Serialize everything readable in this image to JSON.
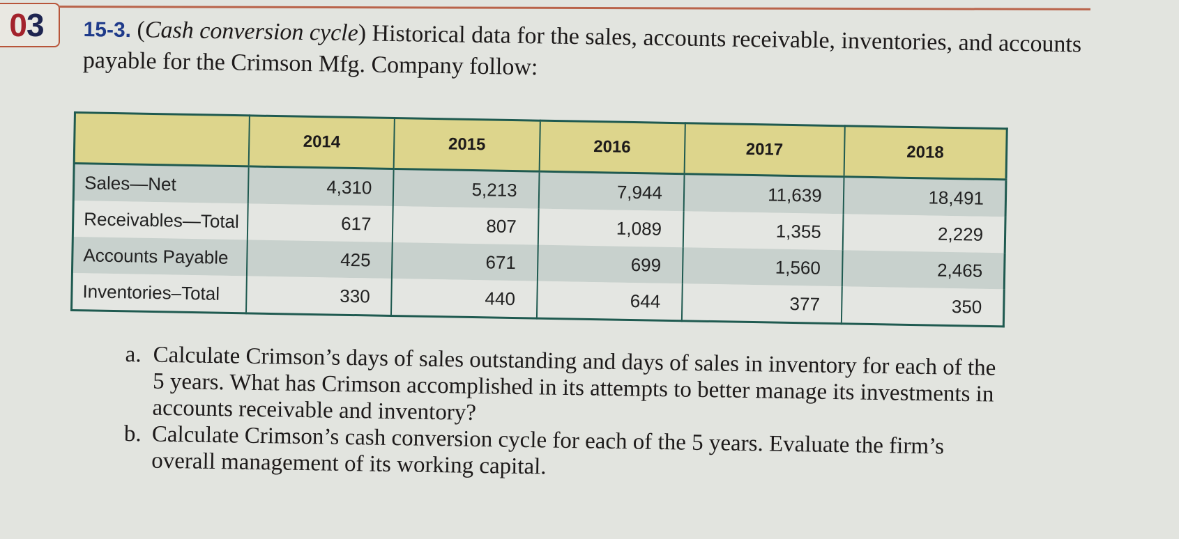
{
  "badge": {
    "part1": "0",
    "part2": "3"
  },
  "problem": {
    "number": "15-3.",
    "title": "Cash conversion cycle",
    "intro": "Historical data for the sales, accounts receivable, inventories, and accounts payable for the Crimson Mfg. Company follow:"
  },
  "table": {
    "headers": [
      "",
      "2014",
      "2015",
      "2016",
      "2017",
      "2018"
    ],
    "rows": [
      {
        "label": "Sales—Net",
        "values": [
          "4,310",
          "5,213",
          "7,944",
          "11,639",
          "18,491"
        ]
      },
      {
        "label": "Receivables—Total",
        "values": [
          "617",
          "807",
          "1,089",
          "1,355",
          "2,229"
        ]
      },
      {
        "label": "Accounts Payable",
        "values": [
          "425",
          "671",
          "699",
          "1,560",
          "2,465"
        ]
      },
      {
        "label": "Inventories–Total",
        "values": [
          "330",
          "440",
          "644",
          "377",
          "350"
        ]
      }
    ]
  },
  "questions": [
    {
      "letter": "a.",
      "text": "Calculate Crimson’s days of sales outstanding and days of sales in inventory for each of the 5 years. What has Crimson accomplished in its attempts to better manage its investments in accounts receivable and inventory?"
    },
    {
      "letter": "b.",
      "text": "Calculate Crimson’s cash conversion cycle for each of the 5 years. Evaluate the firm’s overall management of its working capital."
    }
  ]
}
